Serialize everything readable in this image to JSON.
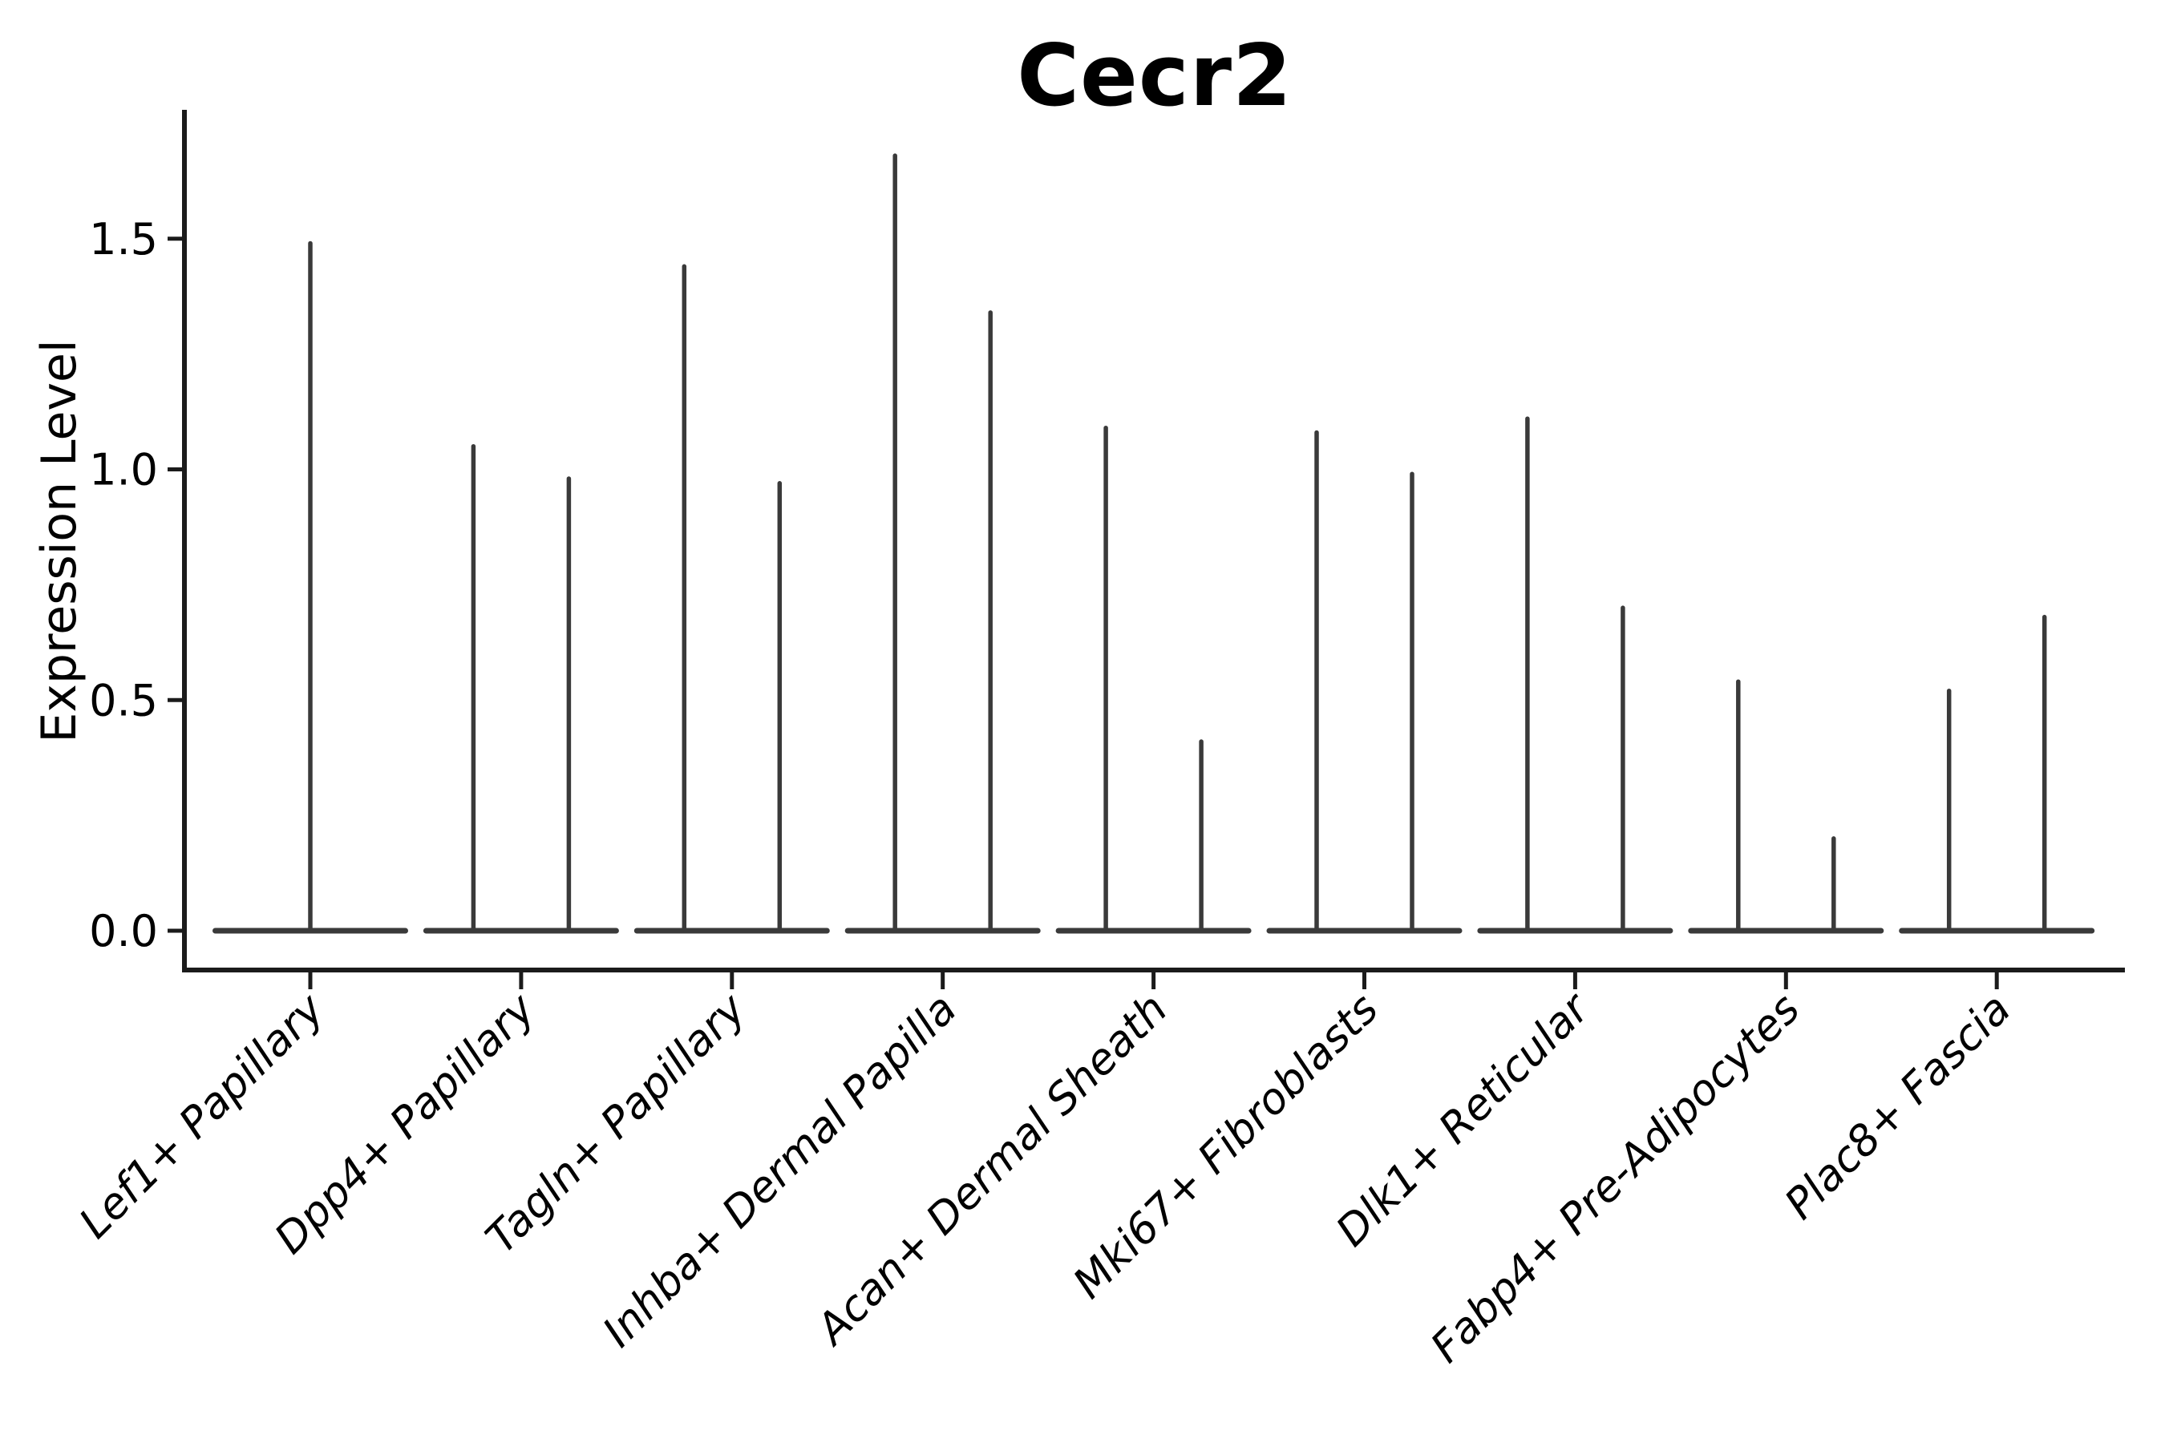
{
  "chart_data": {
    "type": "violin",
    "title": "Cecr2",
    "ylabel": "Expression Level",
    "xlabel": "",
    "y_tick_values": [
      0.0,
      0.5,
      1.0,
      1.5
    ],
    "y_tick_labels": [
      "0.0",
      "0.5",
      "1.0",
      "1.5"
    ],
    "ylim": [
      -0.09,
      1.78
    ],
    "grid": false,
    "legend": null,
    "categories": [
      "Lef1+ Papillary",
      "Dpp4+ Papillary",
      "Tagln+ Papillary",
      "Inhba+ Dermal Papilla",
      "Acan+ Dermal Sheath",
      "Mki67+ Fibroblasts",
      "Dlk1+ Reticular",
      "Fabp4+ Pre-Adipocytes",
      "Plac8+ Fascia"
    ],
    "violins": [
      {
        "category": "Lef1+ Papillary",
        "max_expression": [
          1.49
        ]
      },
      {
        "category": "Dpp4+ Papillary",
        "max_expression": [
          1.05,
          0.98
        ]
      },
      {
        "category": "Tagln+ Papillary",
        "max_expression": [
          1.44,
          0.97
        ]
      },
      {
        "category": "Inhba+ Dermal Papilla",
        "max_expression": [
          1.68,
          1.34
        ]
      },
      {
        "category": "Acan+ Dermal Sheath",
        "max_expression": [
          1.09,
          0.41
        ]
      },
      {
        "category": "Mki67+ Fibroblasts",
        "max_expression": [
          1.08,
          0.99
        ]
      },
      {
        "category": "Dlk1+ Reticular",
        "max_expression": [
          1.11,
          0.7
        ]
      },
      {
        "category": "Fabp4+ Pre-Adipocytes",
        "max_expression": [
          0.54,
          0.2
        ]
      },
      {
        "category": "Plac8+ Fascia",
        "max_expression": [
          0.52,
          0.68
        ]
      }
    ],
    "baseline_value": 0.0
  },
  "colors": {
    "violin": "#3a3a3a",
    "axis": "#1b1b1b",
    "text": "#000000",
    "background": "#ffffff"
  }
}
